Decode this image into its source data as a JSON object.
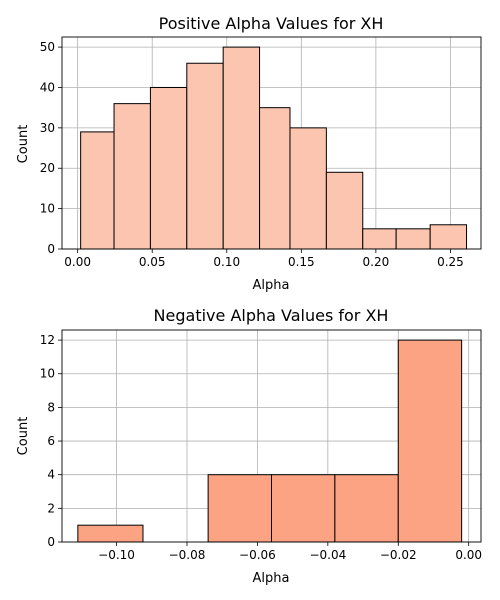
{
  "chart_data": [
    {
      "type": "bar",
      "title": "Positive Alpha Values for XH",
      "xlabel": "Alpha",
      "ylabel": "Count",
      "xlim": [
        -0.0105,
        0.2705
      ],
      "ylim": [
        0,
        52.5
      ],
      "grid": true,
      "bar_color": "#fcc5b0",
      "edge_color": "#000000",
      "bin_edges": [
        0.002,
        0.0244,
        0.0488,
        0.0732,
        0.0976,
        0.122,
        0.1424,
        0.1668,
        0.1912,
        0.2136,
        0.2364,
        0.2608
      ],
      "values": [
        29,
        36,
        40,
        46,
        50,
        35,
        30,
        19,
        5,
        5,
        6
      ],
      "xticks": [
        0.0,
        0.05,
        0.1,
        0.15,
        0.2,
        0.25
      ],
      "xtick_labels": [
        "0.00",
        "0.05",
        "0.10",
        "0.15",
        "0.20",
        "0.25"
      ],
      "yticks": [
        0,
        10,
        20,
        30,
        40,
        50
      ],
      "ytick_labels": [
        "0",
        "10",
        "20",
        "30",
        "40",
        "50"
      ]
    },
    {
      "type": "bar",
      "title": "Negative Alpha Values for XH",
      "xlabel": "Alpha",
      "ylabel": "Count",
      "xlim": [
        -0.1155,
        0.0035
      ],
      "ylim": [
        0,
        12.6
      ],
      "grid": true,
      "bar_color": "#fca384",
      "edge_color": "#000000",
      "bin_edges": [
        -0.111,
        -0.0925,
        -0.074,
        -0.056,
        -0.038,
        -0.02,
        -0.002
      ],
      "values": [
        1,
        0,
        4,
        4,
        4,
        12
      ],
      "xticks": [
        -0.1,
        -0.08,
        -0.06,
        -0.04,
        -0.02,
        0.0
      ],
      "xtick_labels": [
        "−0.10",
        "−0.08",
        "−0.06",
        "−0.04",
        "−0.02",
        "0.00"
      ],
      "yticks": [
        0,
        2,
        4,
        6,
        8,
        10,
        12
      ],
      "ytick_labels": [
        "0",
        "2",
        "4",
        "6",
        "8",
        "10",
        "12"
      ]
    }
  ]
}
